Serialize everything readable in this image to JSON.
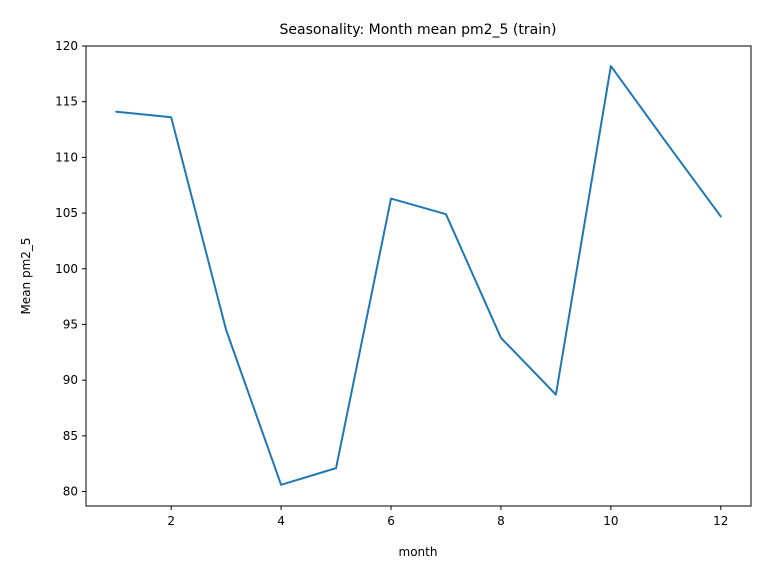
{
  "chart_data": {
    "type": "line",
    "title": "Seasonality: Month mean pm2_5 (train)",
    "xlabel": "month",
    "ylabel": "Mean pm2_5",
    "x": [
      1,
      2,
      3,
      4,
      5,
      6,
      7,
      8,
      9,
      10,
      11,
      12
    ],
    "series": [
      {
        "values": [
          114.1,
          113.6,
          94.5,
          80.6,
          82.1,
          106.3,
          104.9,
          93.8,
          88.7,
          118.2,
          111.4,
          104.7
        ],
        "color": "#1f77b4"
      }
    ],
    "xlim": [
      0.45,
      12.55
    ],
    "ylim": [
      78.7,
      120
    ],
    "xticks": [
      2,
      4,
      6,
      8,
      10,
      12
    ],
    "yticks": [
      80,
      85,
      90,
      95,
      100,
      105,
      110,
      115,
      120
    ],
    "grid": false,
    "legend": "none"
  }
}
